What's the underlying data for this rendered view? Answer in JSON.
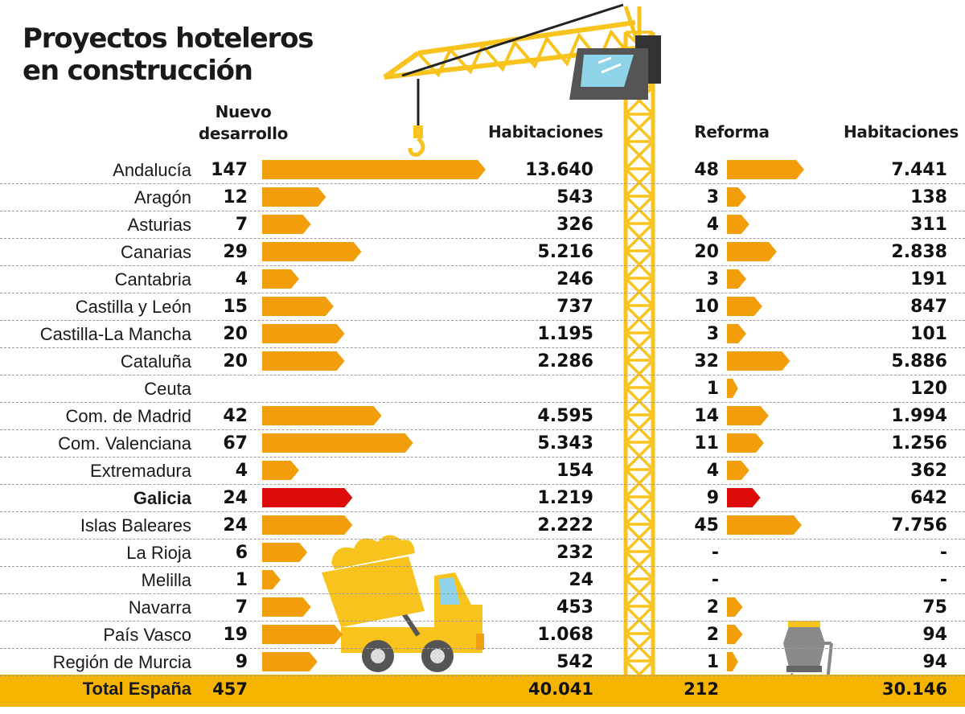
{
  "title": "Proyectos hoteleros\nen construcción",
  "title_lines": [
    "Proyectos hoteleros",
    "en construcción"
  ],
  "headers": {
    "nuevo_line1": "Nuevo",
    "nuevo_line2": "desarrollo",
    "hab1": "Habitaciones",
    "reforma": "Reforma",
    "hab2": "Habitaciones"
  },
  "colors": {
    "bar": "#f29e0b",
    "highlight": "#dd0a0a",
    "total_band": "#f5b400",
    "crane": "#f7c31c"
  },
  "chart_data": {
    "type": "table",
    "columns": [
      "Nuevo desarrollo",
      "Habitaciones",
      "Reforma",
      "Habitaciones"
    ],
    "highlight_row": "Galicia",
    "rows": [
      {
        "region": "Andalucía",
        "nuevo": "147",
        "hab_nuevo": "13.640",
        "reforma": "48",
        "hab_reforma": "7.441"
      },
      {
        "region": "Aragón",
        "nuevo": "12",
        "hab_nuevo": "543",
        "reforma": "3",
        "hab_reforma": "138"
      },
      {
        "region": "Asturias",
        "nuevo": "7",
        "hab_nuevo": "326",
        "reforma": "4",
        "hab_reforma": "311"
      },
      {
        "region": "Canarias",
        "nuevo": "29",
        "hab_nuevo": "5.216",
        "reforma": "20",
        "hab_reforma": "2.838"
      },
      {
        "region": "Cantabria",
        "nuevo": "4",
        "hab_nuevo": "246",
        "reforma": "3",
        "hab_reforma": "191"
      },
      {
        "region": "Castilla y León",
        "nuevo": "15",
        "hab_nuevo": "737",
        "reforma": "10",
        "hab_reforma": "847"
      },
      {
        "region": "Castilla-La Mancha",
        "nuevo": "20",
        "hab_nuevo": "1.195",
        "reforma": "3",
        "hab_reforma": "101"
      },
      {
        "region": "Cataluña",
        "nuevo": "20",
        "hab_nuevo": "2.286",
        "reforma": "32",
        "hab_reforma": "5.886"
      },
      {
        "region": "Ceuta",
        "nuevo": "",
        "hab_nuevo": "",
        "reforma": "1",
        "hab_reforma": "120"
      },
      {
        "region": "Com. de Madrid",
        "nuevo": "42",
        "hab_nuevo": "4.595",
        "reforma": "14",
        "hab_reforma": "1.994"
      },
      {
        "region": "Com. Valenciana",
        "nuevo": "67",
        "hab_nuevo": "5.343",
        "reforma": "11",
        "hab_reforma": "1.256"
      },
      {
        "region": "Extremadura",
        "nuevo": "4",
        "hab_nuevo": "154",
        "reforma": "4",
        "hab_reforma": "362"
      },
      {
        "region": "Galicia",
        "nuevo": "24",
        "hab_nuevo": "1.219",
        "reforma": "9",
        "hab_reforma": "642"
      },
      {
        "region": "Islas Baleares",
        "nuevo": "24",
        "hab_nuevo": "2.222",
        "reforma": "45",
        "hab_reforma": "7.756"
      },
      {
        "region": "La Rioja",
        "nuevo": "6",
        "hab_nuevo": "232",
        "reforma": "-",
        "hab_reforma": "-"
      },
      {
        "region": "Melilla",
        "nuevo": "1",
        "hab_nuevo": "24",
        "reforma": "-",
        "hab_reforma": "-"
      },
      {
        "region": "Navarra",
        "nuevo": "7",
        "hab_nuevo": "453",
        "reforma": "2",
        "hab_reforma": "75"
      },
      {
        "region": "País Vasco",
        "nuevo": "19",
        "hab_nuevo": "1.068",
        "reforma": "2",
        "hab_reforma": "94"
      },
      {
        "region": "Región de Murcia",
        "nuevo": "9",
        "hab_nuevo": "542",
        "reforma": "1",
        "hab_reforma": "94"
      }
    ],
    "total": {
      "region": "Total España",
      "nuevo": "457",
      "hab_nuevo": "40.041",
      "reforma": "212",
      "hab_reforma": "30.146"
    },
    "bars_nuevo": [
      147,
      12,
      7,
      29,
      4,
      15,
      20,
      20,
      0,
      42,
      67,
      4,
      24,
      24,
      6,
      1,
      7,
      19,
      9
    ],
    "bars_reforma": [
      48,
      3,
      4,
      20,
      3,
      10,
      3,
      32,
      1,
      14,
      11,
      4,
      9,
      45,
      0,
      0,
      2,
      2,
      1
    ]
  }
}
